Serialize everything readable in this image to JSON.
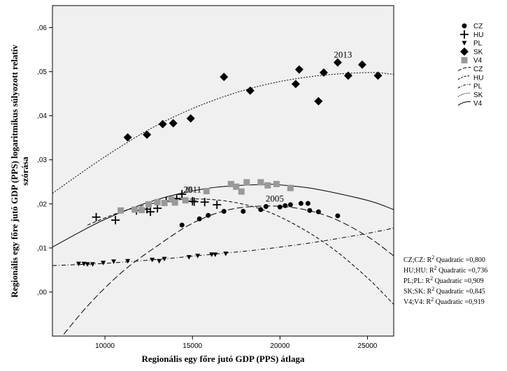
{
  "chart_data": {
    "type": "scatter",
    "xlabel": "Regionális egy főre jutó GDP (PPS) átlaga",
    "ylabel": [
      "Regionális egy főre jutó GDP (PPS) logaritmikus súlyozott relatív",
      "szórása"
    ],
    "xlim": [
      7000,
      26500
    ],
    "ylim": [
      -0.01,
      0.065
    ],
    "x_ticks": [
      10000,
      15000,
      20000,
      25000
    ],
    "x_tick_labels": [
      "10000",
      "15000",
      "20000",
      "25000"
    ],
    "y_ticks": [
      0.0,
      0.01,
      0.02,
      0.03,
      0.04,
      0.05,
      0.06
    ],
    "y_tick_labels": [
      ",00",
      ",01",
      ",02",
      ",03",
      ",04",
      ",05",
      ",06"
    ],
    "grid": false,
    "plot_background": "#f0f0f0",
    "legend_position": "right",
    "legend": [
      {
        "label": "CZ",
        "marker": "circle"
      },
      {
        "label": "HU",
        "marker": "plus"
      },
      {
        "label": "PL",
        "marker": "triangle-down"
      },
      {
        "label": "SK",
        "marker": "diamond"
      },
      {
        "label": "V4",
        "marker": "square"
      },
      {
        "label": "CZ",
        "line": "long-dash"
      },
      {
        "label": "HU",
        "line": "dash"
      },
      {
        "label": "PL",
        "line": "dash-dot"
      },
      {
        "label": "SK",
        "line": "dot"
      },
      {
        "label": "V4",
        "line": "solid"
      }
    ],
    "series": [
      {
        "name": "CZ",
        "marker": "circle",
        "color": "#000000",
        "x": [
          14400,
          15400,
          15900,
          16800,
          17900,
          18900,
          19200,
          20000,
          20300,
          20600,
          21200,
          21600,
          21700,
          22200,
          23300
        ],
        "y": [
          0.0152,
          0.0166,
          0.0174,
          0.0183,
          0.0183,
          0.0187,
          0.0194,
          0.0193,
          0.0196,
          0.0198,
          0.0201,
          0.0201,
          0.0185,
          0.0182,
          0.0173
        ],
        "fit": {
          "curve": "quadratic",
          "style": "long-dash",
          "x_from": 7000,
          "x_to": 26500,
          "x": [
            7000,
            9000,
            11000,
            13000,
            15000,
            17000,
            19000,
            21000,
            23000,
            25000,
            26500
          ],
          "y": [
            -0.0128,
            -0.0032,
            0.0046,
            0.0105,
            0.0156,
            0.0186,
            0.0195,
            0.019,
            0.0168,
            0.0126,
            0.0082
          ]
        }
      },
      {
        "name": "HU",
        "marker": "plus",
        "color": "#000000",
        "x": [
          9500,
          10600,
          11800,
          12400,
          12600,
          13000,
          13500,
          14100,
          14400,
          15000,
          15100,
          15700,
          16400
        ],
        "y": [
          0.017,
          0.0163,
          0.0185,
          0.0188,
          0.0182,
          0.019,
          0.0206,
          0.0212,
          0.0222,
          0.0206,
          0.0205,
          0.0204,
          0.0198
        ],
        "fit": {
          "curve": "quadratic",
          "style": "dash",
          "x_from": 9000,
          "x_to": 26500,
          "x": [
            9000,
            11000,
            13000,
            15000,
            17000,
            19000,
            21000,
            23000,
            25000,
            26500
          ],
          "y": [
            0.0152,
            0.0183,
            0.0203,
            0.0211,
            0.0206,
            0.0187,
            0.015,
            0.0099,
            0.0032,
            -0.0028
          ]
        }
      },
      {
        "name": "PL",
        "marker": "triangle-down",
        "color": "#000000",
        "x": [
          8500,
          8800,
          9000,
          9300,
          9900,
          10500,
          11300,
          12700,
          13100,
          13400,
          14800,
          15300,
          16100,
          16300,
          16900
        ],
        "y": [
          0.0064,
          0.0064,
          0.0063,
          0.0063,
          0.0066,
          0.0069,
          0.007,
          0.0073,
          0.007,
          0.0075,
          0.0079,
          0.0082,
          0.0085,
          0.0085,
          0.0087
        ],
        "fit": {
          "curve": "quadratic",
          "style": "dash-dot",
          "x_from": 7000,
          "x_to": 26500,
          "x": [
            7000,
            10000,
            13000,
            16000,
            19000,
            22000,
            25000,
            26500
          ],
          "y": [
            0.006,
            0.0065,
            0.0074,
            0.0085,
            0.0097,
            0.0113,
            0.0133,
            0.0145
          ]
        }
      },
      {
        "name": "SK",
        "marker": "diamond",
        "color": "#000000",
        "x": [
          11300,
          12400,
          13300,
          13900,
          14900,
          16800,
          18300,
          20900,
          21100,
          22200,
          22500,
          23300,
          23900,
          24700,
          25600
        ],
        "y": [
          0.0351,
          0.0357,
          0.0381,
          0.0383,
          0.0394,
          0.0488,
          0.0457,
          0.0472,
          0.0505,
          0.0433,
          0.0498,
          0.0521,
          0.0491,
          0.0516,
          0.0491
        ],
        "fit": {
          "curve": "quadratic",
          "style": "dot",
          "x_from": 7000,
          "x_to": 26500,
          "x": [
            7000,
            10000,
            13000,
            16000,
            19000,
            22000,
            25000,
            26500
          ],
          "y": [
            0.0224,
            0.0307,
            0.0379,
            0.0432,
            0.0469,
            0.049,
            0.0498,
            0.0494
          ]
        }
      },
      {
        "name": "V4",
        "marker": "square",
        "color": "#999999",
        "x": [
          10900,
          11700,
          12100,
          12500,
          13000,
          13400,
          13800,
          14000,
          14600,
          14800,
          15800,
          17200,
          17500,
          17800,
          18100,
          18900,
          19300,
          19800,
          20600
        ],
        "y": [
          0.0185,
          0.0187,
          0.0186,
          0.0199,
          0.0204,
          0.0202,
          0.021,
          0.0203,
          0.0208,
          0.0232,
          0.0229,
          0.0245,
          0.0239,
          0.0228,
          0.0249,
          0.0249,
          0.0242,
          0.0245,
          0.0236
        ],
        "fit": {
          "curve": "quadratic",
          "style": "solid",
          "x_from": 7000,
          "x_to": 26500,
          "x": [
            7000,
            10000,
            13000,
            16000,
            19000,
            20000,
            22000,
            25000,
            26500
          ],
          "y": [
            0.0102,
            0.0165,
            0.021,
            0.0236,
            0.0244,
            0.0243,
            0.0234,
            0.0208,
            0.0187
          ]
        }
      }
    ],
    "annotations": [
      {
        "text": "2013",
        "x": 23600,
        "y": 0.0532
      },
      {
        "text": "2011",
        "x": 15000,
        "y": 0.0226
      },
      {
        "text": "2005",
        "x": 19700,
        "y": 0.0205
      }
    ],
    "r2_lines": [
      {
        "prefix": "CZ;CZ: R",
        "sup": "2",
        "suffix": " Quadratic =0,800"
      },
      {
        "prefix": "HU;HU: R",
        "sup": "2",
        "suffix": " Quadratic =0,736"
      },
      {
        "prefix": "PL;PL: R",
        "sup": "2",
        "suffix": " Quadratic =0,909"
      },
      {
        "prefix": "SK;SK: R",
        "sup": "2",
        "suffix": " Quadratic =0,845"
      },
      {
        "prefix": "V4;V4: R",
        "sup": "2",
        "suffix": " Quadratic =0,919"
      }
    ]
  }
}
